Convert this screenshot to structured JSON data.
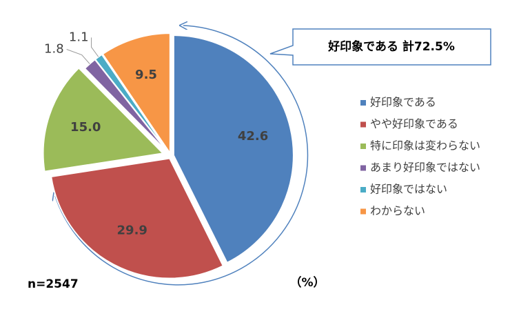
{
  "chart_data": {
    "type": "pie",
    "categories": [
      "好印象である",
      "やや好印象である",
      "特に印象は変わらない",
      "あまり好印象ではない",
      "好印象ではない",
      "わからない"
    ],
    "values": [
      42.6,
      29.9,
      15.0,
      1.8,
      1.1,
      9.5
    ],
    "value_labels": [
      "42.6",
      "29.9",
      "15.0",
      "1.8",
      "1.1",
      "9.5"
    ],
    "colors": [
      "#4f81bd",
      "#c0504d",
      "#9bbb59",
      "#8064a2",
      "#4bacc6",
      "#f79646"
    ],
    "annotation": "好印象である 計72.5%",
    "sample_size": "n=2547",
    "unit_label": "（%）",
    "legend": "right"
  }
}
